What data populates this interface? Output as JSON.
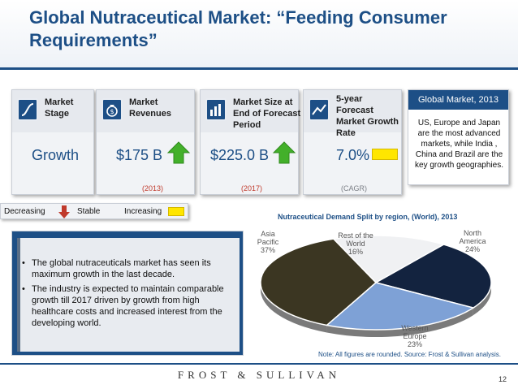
{
  "title": "Global Nutraceutical Market: “Feeding Consumer Requirements”",
  "panels": [
    {
      "label": "Market Stage",
      "value": "Growth",
      "sub": "",
      "icon": "s-curve-icon",
      "indicator": "none"
    },
    {
      "label": "Market Revenues",
      "value": "$175 B",
      "sub": "(2013)",
      "icon": "money-bag-icon",
      "indicator": "increasing"
    },
    {
      "label": "Market Size at End of Forecast Period",
      "value": "$225.0 B",
      "sub": "(2017)",
      "icon": "bar-chart-icon",
      "indicator": "increasing"
    },
    {
      "label": "5-year Forecast Market Growth Rate",
      "value": "7.0%",
      "sub": "(CAGR)",
      "icon": "growth-line-icon",
      "indicator": "stable"
    }
  ],
  "global_box": {
    "title": "Global Market, 2013",
    "text": "US, Europe and Japan are the most advanced markets, while India , China and Brazil are the key growth geographies."
  },
  "legend": {
    "decreasing": "Decreasing",
    "stable": "Stable",
    "increasing": "Increasing"
  },
  "bullets": [
    "The global nutraceuticals market has seen its maximum growth in the last decade.",
    "The industry is expected to maintain comparable growth till 2017 driven by growth from high healthcare costs and increased interest from  the developing world."
  ],
  "chart_data": {
    "type": "pie",
    "title": "Nutraceutical Demand Split by region, (World), 2013",
    "slices": [
      {
        "label": "North America",
        "value": 24,
        "display": "24%",
        "color": "#13233f"
      },
      {
        "label": "Western Europe",
        "value": 23,
        "display": "23%",
        "color": "#7ea1d6"
      },
      {
        "label": "Asia Pacific",
        "value": 37,
        "display": "37%",
        "color": "#3b3622"
      },
      {
        "label": "Rest of the World",
        "value": 16,
        "display": "16%",
        "color": "#f0f1f3"
      }
    ]
  },
  "note": "Note: All figures are rounded. Source: Frost & Sullivan analysis.",
  "footer": {
    "brand": "FROST & SULLIVAN",
    "page": "12"
  },
  "colors": {
    "brand_blue": "#1d4f86",
    "increase_green": "#43b02a",
    "decrease_red": "#c0392b",
    "stable_yellow": "#ffe600"
  }
}
